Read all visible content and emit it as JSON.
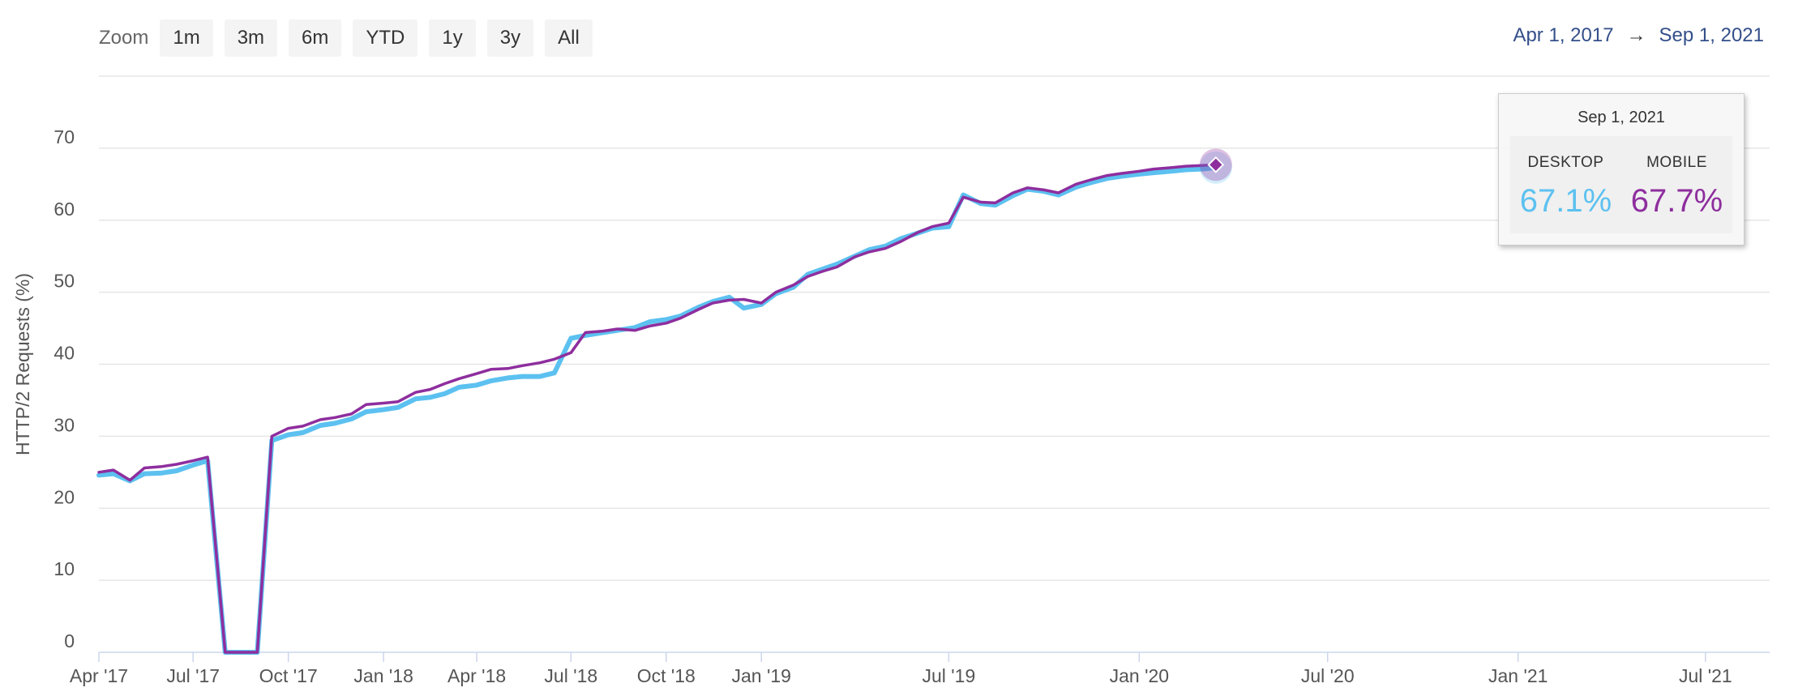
{
  "zoom": {
    "label": "Zoom",
    "buttons": [
      "1m",
      "3m",
      "6m",
      "YTD",
      "1y",
      "3y",
      "All"
    ]
  },
  "range": {
    "from": "Apr 1, 2017",
    "arrow": "→",
    "to": "Sep 1, 2021"
  },
  "tooltip": {
    "date": "Sep 1, 2021",
    "desktop_label": "DESKTOP",
    "mobile_label": "MOBILE",
    "desktop_value": "67.1%",
    "mobile_value": "67.7%"
  },
  "colors": {
    "desktop": "#5cc1f0",
    "mobile": "#8e2e9e",
    "grid": "#e6e6e6",
    "axis": "#ccd6eb"
  },
  "chart_data": {
    "type": "line",
    "title": "",
    "xlabel": "",
    "ylabel": "HTTP/2 Requests (%)",
    "ylim": [
      0,
      80
    ],
    "x_range": [
      "2017-04-01",
      "2021-09-01"
    ],
    "yticks": [
      0,
      10,
      20,
      30,
      40,
      50,
      60,
      70
    ],
    "xticks": [
      {
        "date": "2017-04-01",
        "label": "Apr '17"
      },
      {
        "date": "2017-07-01",
        "label": "Jul '17"
      },
      {
        "date": "2017-10-01",
        "label": "Oct '17"
      },
      {
        "date": "2018-01-01",
        "label": "Jan '18"
      },
      {
        "date": "2018-04-01",
        "label": "Apr '18"
      },
      {
        "date": "2018-07-01",
        "label": "Jul '18"
      },
      {
        "date": "2018-10-01",
        "label": "Oct '18"
      },
      {
        "date": "2019-01-01",
        "label": "Jan '19"
      },
      {
        "date": "2019-07-01",
        "label": "Jul '19"
      },
      {
        "date": "2020-01-01",
        "label": "Jan '20"
      },
      {
        "date": "2020-07-01",
        "label": "Jul '20"
      },
      {
        "date": "2021-01-01",
        "label": "Jan '21"
      },
      {
        "date": "2021-07-01",
        "label": "Jul '21"
      }
    ],
    "grid": true,
    "legend": "none",
    "series": [
      {
        "name": "DESKTOP",
        "points": [
          [
            "2017-04-01",
            24.6
          ],
          [
            "2017-04-15",
            24.8
          ],
          [
            "2017-05-01",
            23.8
          ],
          [
            "2017-05-15",
            24.8
          ],
          [
            "2017-06-01",
            24.9
          ],
          [
            "2017-06-15",
            25.2
          ],
          [
            "2017-07-01",
            26.0
          ],
          [
            "2017-07-15",
            26.6
          ],
          [
            "2017-08-01",
            0
          ],
          [
            "2017-08-15",
            0
          ],
          [
            "2017-09-01",
            0
          ],
          [
            "2017-09-15",
            29.4
          ],
          [
            "2017-10-01",
            30.2
          ],
          [
            "2017-10-15",
            30.5
          ],
          [
            "2017-11-01",
            31.5
          ],
          [
            "2017-11-15",
            31.8
          ],
          [
            "2017-12-01",
            32.4
          ],
          [
            "2017-12-15",
            33.4
          ],
          [
            "2018-01-01",
            33.7
          ],
          [
            "2018-01-15",
            34.0
          ],
          [
            "2018-02-01",
            35.2
          ],
          [
            "2018-02-15",
            35.4
          ],
          [
            "2018-03-01",
            35.9
          ],
          [
            "2018-03-15",
            36.8
          ],
          [
            "2018-04-01",
            37.1
          ],
          [
            "2018-04-15",
            37.7
          ],
          [
            "2018-05-01",
            38.1
          ],
          [
            "2018-05-15",
            38.3
          ],
          [
            "2018-06-01",
            38.3
          ],
          [
            "2018-06-15",
            38.8
          ],
          [
            "2018-07-01",
            43.6
          ],
          [
            "2018-07-15",
            44.0
          ],
          [
            "2018-08-01",
            44.4
          ],
          [
            "2018-08-15",
            44.7
          ],
          [
            "2018-09-01",
            45.1
          ],
          [
            "2018-09-15",
            45.9
          ],
          [
            "2018-10-01",
            46.2
          ],
          [
            "2018-10-15",
            46.7
          ],
          [
            "2018-11-01",
            47.9
          ],
          [
            "2018-11-15",
            48.7
          ],
          [
            "2018-12-01",
            49.3
          ],
          [
            "2018-12-15",
            47.8
          ],
          [
            "2019-01-01",
            48.3
          ],
          [
            "2019-01-15",
            49.8
          ],
          [
            "2019-02-01",
            50.7
          ],
          [
            "2019-02-15",
            52.5
          ],
          [
            "2019-03-01",
            53.2
          ],
          [
            "2019-03-15",
            53.9
          ],
          [
            "2019-04-01",
            55.0
          ],
          [
            "2019-04-15",
            55.9
          ],
          [
            "2019-05-01",
            56.4
          ],
          [
            "2019-05-15",
            57.4
          ],
          [
            "2019-06-01",
            58.2
          ],
          [
            "2019-06-15",
            58.9
          ],
          [
            "2019-07-01",
            59.1
          ],
          [
            "2019-07-15",
            63.5
          ],
          [
            "2019-08-01",
            62.3
          ],
          [
            "2019-08-15",
            62.1
          ],
          [
            "2019-09-01",
            63.4
          ],
          [
            "2019-09-15",
            64.3
          ],
          [
            "2019-10-01",
            64.0
          ],
          [
            "2019-10-15",
            63.5
          ],
          [
            "2019-11-01",
            64.6
          ],
          [
            "2019-11-15",
            65.2
          ],
          [
            "2019-12-01",
            65.8
          ],
          [
            "2019-12-15",
            66.1
          ],
          [
            "2020-01-01",
            66.4
          ],
          [
            "2020-01-15",
            66.6
          ],
          [
            "2020-02-01",
            66.8
          ],
          [
            "2020-02-15",
            67.0
          ],
          [
            "2020-03-01",
            67.1
          ],
          [
            "2020-03-15",
            67.3
          ]
        ]
      },
      {
        "name": "MOBILE",
        "points": [
          [
            "2017-04-01",
            25.0
          ],
          [
            "2017-04-15",
            25.3
          ],
          [
            "2017-05-01",
            23.9
          ],
          [
            "2017-05-15",
            25.6
          ],
          [
            "2017-06-01",
            25.8
          ],
          [
            "2017-06-15",
            26.1
          ],
          [
            "2017-07-01",
            26.6
          ],
          [
            "2017-07-15",
            27.1
          ],
          [
            "2017-08-01",
            0
          ],
          [
            "2017-08-15",
            0
          ],
          [
            "2017-09-01",
            0
          ],
          [
            "2017-09-15",
            30.0
          ],
          [
            "2017-10-01",
            31.1
          ],
          [
            "2017-10-15",
            31.4
          ],
          [
            "2017-11-01",
            32.3
          ],
          [
            "2017-11-15",
            32.6
          ],
          [
            "2017-12-01",
            33.1
          ],
          [
            "2017-12-15",
            34.4
          ],
          [
            "2018-01-01",
            34.6
          ],
          [
            "2018-01-15",
            34.8
          ],
          [
            "2018-02-01",
            36.1
          ],
          [
            "2018-02-15",
            36.5
          ],
          [
            "2018-03-01",
            37.3
          ],
          [
            "2018-03-15",
            38.0
          ],
          [
            "2018-04-01",
            38.7
          ],
          [
            "2018-04-15",
            39.3
          ],
          [
            "2018-05-01",
            39.4
          ],
          [
            "2018-05-15",
            39.8
          ],
          [
            "2018-06-01",
            40.2
          ],
          [
            "2018-06-15",
            40.7
          ],
          [
            "2018-07-01",
            41.6
          ],
          [
            "2018-07-15",
            44.4
          ],
          [
            "2018-08-01",
            44.6
          ],
          [
            "2018-08-15",
            44.9
          ],
          [
            "2018-09-01",
            44.7
          ],
          [
            "2018-09-15",
            45.3
          ],
          [
            "2018-10-01",
            45.7
          ],
          [
            "2018-10-15",
            46.4
          ],
          [
            "2018-11-01",
            47.6
          ],
          [
            "2018-11-15",
            48.5
          ],
          [
            "2018-12-01",
            48.9
          ],
          [
            "2018-12-15",
            49.0
          ],
          [
            "2019-01-01",
            48.5
          ],
          [
            "2019-01-15",
            50.0
          ],
          [
            "2019-02-01",
            51.0
          ],
          [
            "2019-02-15",
            52.2
          ],
          [
            "2019-03-01",
            52.9
          ],
          [
            "2019-03-15",
            53.5
          ],
          [
            "2019-04-01",
            54.9
          ],
          [
            "2019-04-15",
            55.6
          ],
          [
            "2019-05-01",
            56.1
          ],
          [
            "2019-05-15",
            57.0
          ],
          [
            "2019-06-01",
            58.3
          ],
          [
            "2019-06-15",
            59.1
          ],
          [
            "2019-07-01",
            59.6
          ],
          [
            "2019-07-15",
            63.2
          ],
          [
            "2019-08-01",
            62.5
          ],
          [
            "2019-08-15",
            62.4
          ],
          [
            "2019-09-01",
            63.8
          ],
          [
            "2019-09-15",
            64.5
          ],
          [
            "2019-10-01",
            64.2
          ],
          [
            "2019-10-15",
            63.8
          ],
          [
            "2019-11-01",
            65.0
          ],
          [
            "2019-11-15",
            65.6
          ],
          [
            "2019-12-01",
            66.2
          ],
          [
            "2019-12-15",
            66.5
          ],
          [
            "2020-01-01",
            66.8
          ],
          [
            "2020-01-15",
            67.1
          ],
          [
            "2020-02-01",
            67.3
          ],
          [
            "2020-02-15",
            67.5
          ],
          [
            "2020-03-01",
            67.6
          ],
          [
            "2020-03-15",
            67.7
          ]
        ]
      }
    ]
  }
}
